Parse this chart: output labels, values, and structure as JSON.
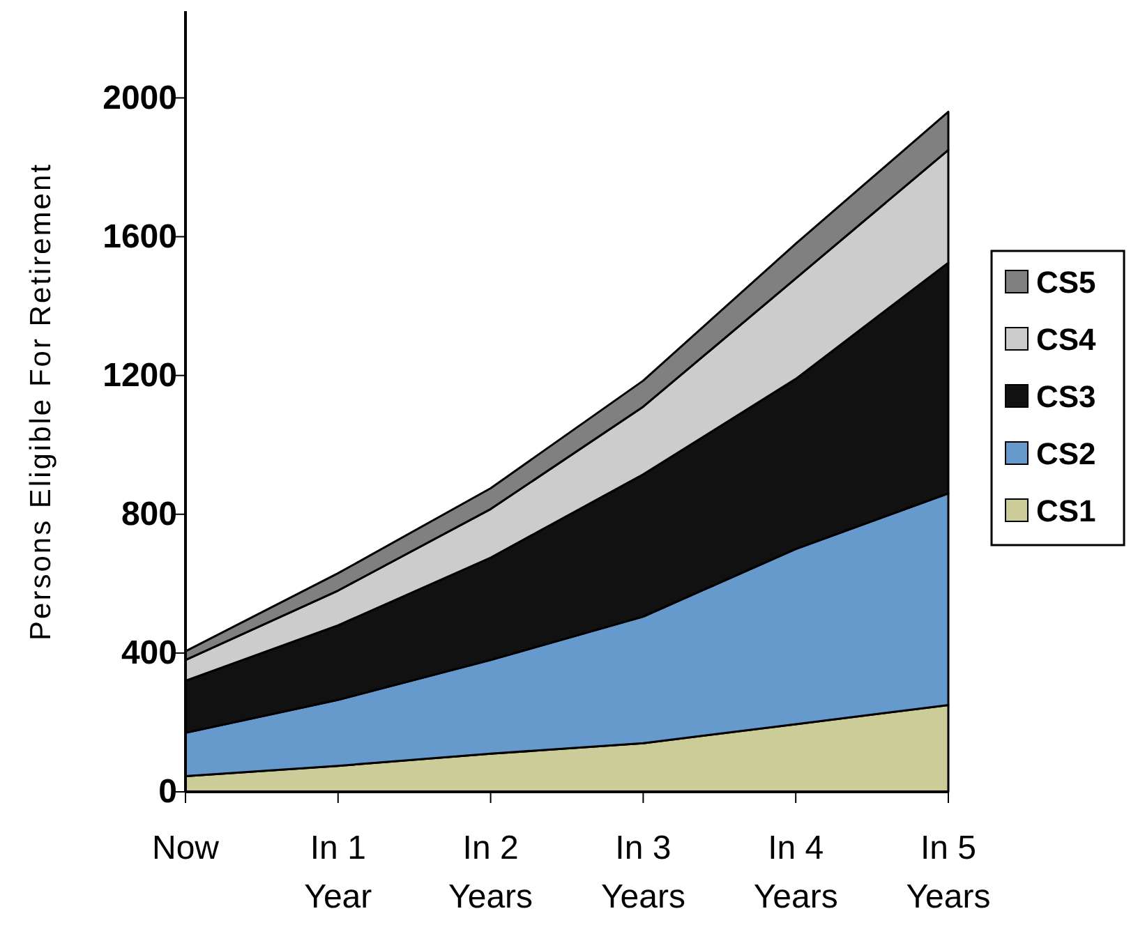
{
  "chart_data": {
    "type": "area",
    "stacked": true,
    "ylabel": "Persons Eligible For Retirement",
    "categories": [
      "Now",
      "In 1\nYear",
      "In 2\nYears",
      "In 3\nYears",
      "In 4\nYears",
      "In 5\nYears"
    ],
    "ylim": [
      0,
      2250
    ],
    "yticks": [
      0,
      400,
      800,
      1200,
      1600,
      2000
    ],
    "grid": false,
    "legend": "right",
    "series": [
      {
        "name": "CS1",
        "color": "#cccc99",
        "values": [
          45,
          75,
          110,
          140,
          195,
          250
        ]
      },
      {
        "name": "CS2",
        "color": "#6699cc",
        "values": [
          125,
          190,
          270,
          365,
          505,
          610
        ]
      },
      {
        "name": "CS3",
        "color": "#111111",
        "values": [
          150,
          215,
          295,
          410,
          490,
          665
        ]
      },
      {
        "name": "CS4",
        "color": "#cccccc",
        "values": [
          60,
          100,
          140,
          195,
          290,
          325
        ]
      },
      {
        "name": "CS5",
        "color": "#808080",
        "values": [
          25,
          50,
          60,
          75,
          100,
          110
        ]
      }
    ]
  }
}
